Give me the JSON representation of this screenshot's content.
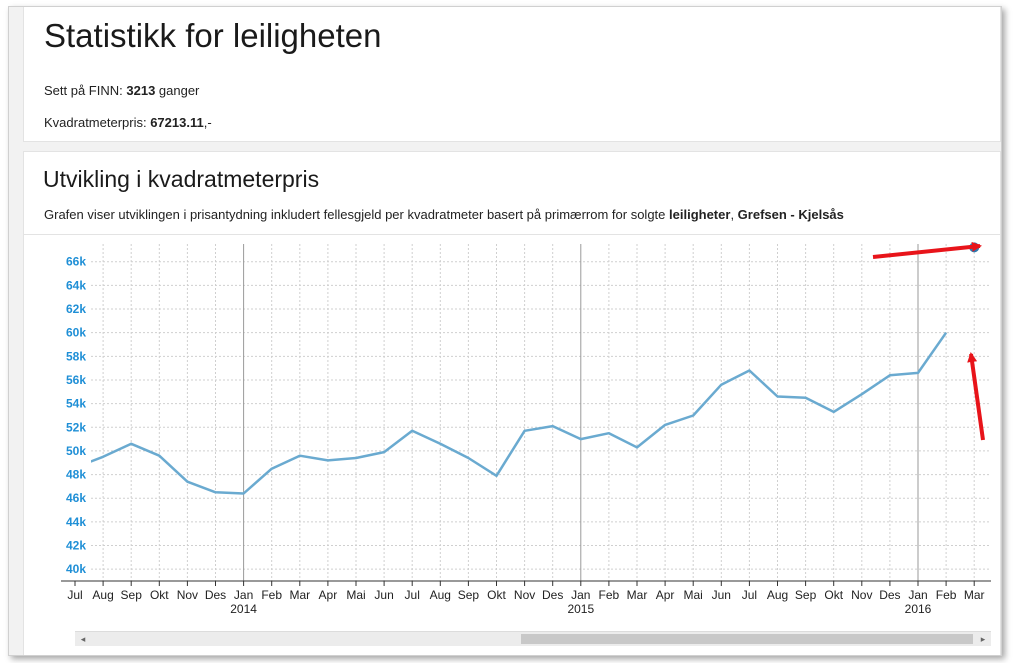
{
  "header": {
    "title": "Statistikk for leiligheten",
    "views_prefix": "Sett på FINN: ",
    "views_value": "3213",
    "views_suffix": " ganger",
    "sqm_prefix": "Kvadratmeterpris: ",
    "sqm_value": "67213.11",
    "sqm_suffix": ",-"
  },
  "chart_section": {
    "title": "Utvikling i kvadratmeterpris",
    "desc_prefix": "Grafen viser utviklingen i prisantydning inkludert fellesgjeld per kvadratmeter basert på primærrom for solgte ",
    "desc_type": "leiligheter",
    "desc_sep": ", ",
    "desc_area": "Grefsen - Kjelsås"
  },
  "colors": {
    "line": "#6aaad0",
    "axis_label": "#1f8fd6",
    "point": "#2e78ad",
    "arrow": "#e8141a",
    "grid": "#cfcfcf"
  },
  "chart_data": {
    "type": "line",
    "title": "",
    "xlabel": "",
    "ylabel": "",
    "ylim": [
      39000,
      67500
    ],
    "yticks": [
      40000,
      42000,
      44000,
      46000,
      48000,
      50000,
      52000,
      54000,
      56000,
      58000,
      60000,
      62000,
      64000,
      66000
    ],
    "ytick_labels": [
      "40k",
      "42k",
      "44k",
      "46k",
      "48k",
      "50k",
      "52k",
      "54k",
      "56k",
      "58k",
      "60k",
      "62k",
      "64k",
      "66k"
    ],
    "categories": [
      "Jul",
      "Aug",
      "Sep",
      "Okt",
      "Nov",
      "Des",
      "Jan",
      "Feb",
      "Mar",
      "Apr",
      "Mai",
      "Jun",
      "Jul",
      "Aug",
      "Sep",
      "Okt",
      "Nov",
      "Des",
      "Jan",
      "Feb",
      "Mar",
      "Apr",
      "Mai",
      "Jun",
      "Jul",
      "Aug",
      "Sep",
      "Okt",
      "Nov",
      "Des",
      "Jan",
      "Feb",
      "Mar"
    ],
    "tick_labels": [
      "Jul",
      "Aug",
      "Sep",
      "Okt",
      "Nov",
      "Des",
      "Jan",
      "Feb",
      "Mar",
      "Apr",
      "Mai",
      "Jun",
      "Jul",
      "Aug",
      "Sep",
      "Okt",
      "Nov",
      "Des",
      "Jan",
      "Feb",
      "Mar",
      "Apr",
      "Mai",
      "Jun",
      "Jul",
      "Aug",
      "Sep",
      "Okt",
      "Nov",
      "Des",
      "Jan",
      "Feb",
      "Mar"
    ],
    "year_labels": [
      {
        "index": 6,
        "label": "2014"
      },
      {
        "index": 18,
        "label": "2015"
      },
      {
        "index": 30,
        "label": "2016"
      }
    ],
    "series": [
      {
        "values": [
          48600,
          49500,
          50600,
          49600,
          47400,
          46500,
          46400,
          48500,
          49600,
          49200,
          49400,
          49900,
          51700,
          50600,
          49400,
          47900,
          51700,
          52100,
          51000,
          51500,
          50300,
          52200,
          53000,
          55600,
          56800,
          54600,
          54500,
          53300,
          54800,
          56400,
          56600,
          60000,
          null
        ]
      }
    ],
    "highlight_point": {
      "index": 32,
      "value": 67213.11
    },
    "grid": true,
    "legend": "none"
  }
}
